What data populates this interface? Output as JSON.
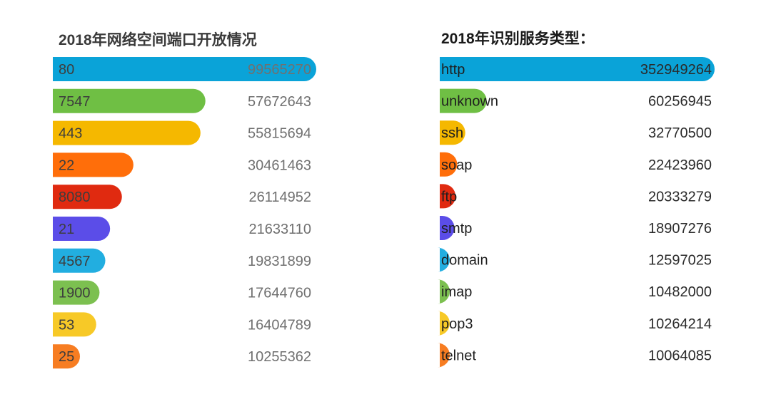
{
  "chart_data": [
    {
      "type": "bar",
      "orientation": "horizontal",
      "title": "2018年网络空间端口开放情况",
      "categories": [
        "80",
        "7547",
        "443",
        "22",
        "8080",
        "21",
        "4567",
        "1900",
        "53",
        "25"
      ],
      "values": [
        99565270,
        57672643,
        55815694,
        30461463,
        26114952,
        21633110,
        19831899,
        17644760,
        16404789,
        10255362
      ],
      "value_labels": [
        "99565270",
        "57672643",
        "55815694",
        "30461463",
        "26114952",
        "21633110",
        "19831899",
        "17644760",
        "16404789",
        "10255362"
      ],
      "colors": [
        "#0aa3d8",
        "#6fbf44",
        "#f5b800",
        "#ff6e0a",
        "#e02a10",
        "#5b4de8",
        "#22aee0",
        "#7cc050",
        "#f7c927",
        "#f77d22"
      ],
      "xlim": [
        0,
        99565270
      ],
      "grid": false,
      "legend": "none"
    },
    {
      "type": "bar",
      "orientation": "horizontal",
      "title": "2018年识别服务类型：",
      "categories": [
        "http",
        "unknown",
        "ssh",
        "soap",
        "ftp",
        "smtp",
        "domain",
        "imap",
        "pop3",
        "telnet"
      ],
      "values": [
        352949264,
        60256945,
        32770500,
        22423960,
        20333279,
        18907276,
        12597025,
        10482000,
        10264214,
        10064085
      ],
      "value_labels": [
        "352949264",
        "60256945",
        "32770500",
        "22423960",
        "20333279",
        "18907276",
        "12597025",
        "10482000",
        "10264214",
        "10064085"
      ],
      "colors": [
        "#0aa3d8",
        "#6fbf44",
        "#f5b800",
        "#ff6e0a",
        "#e02a10",
        "#5b4de8",
        "#22aee0",
        "#7cc050",
        "#f7c927",
        "#f77d22"
      ],
      "xlim": [
        0,
        352949264
      ],
      "grid": false,
      "legend": "none"
    }
  ]
}
